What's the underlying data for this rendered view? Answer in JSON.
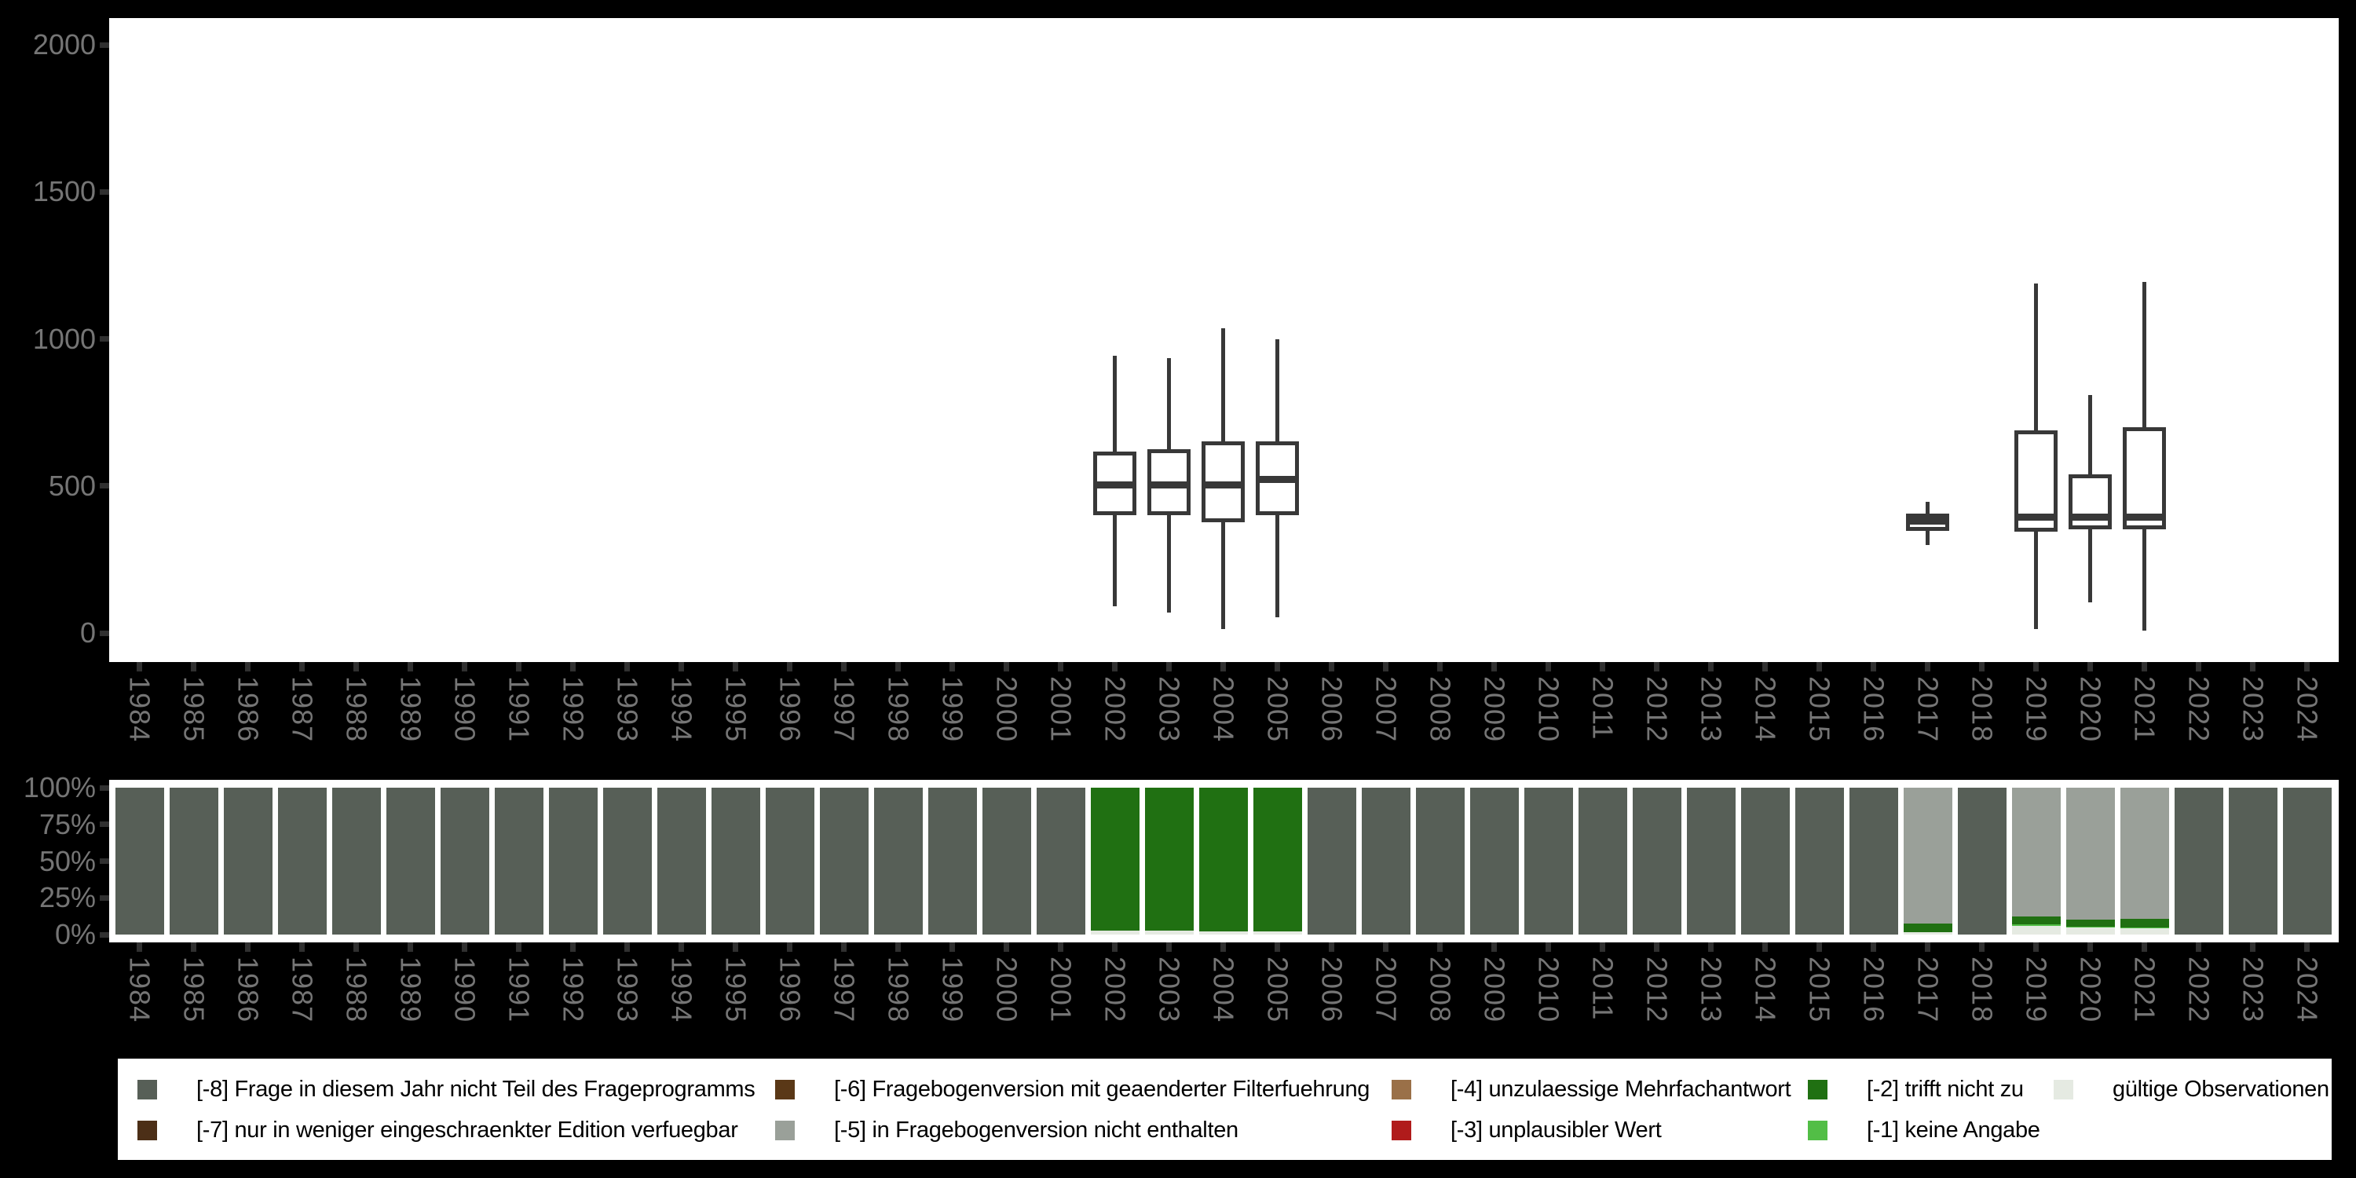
{
  "colors": {
    "background": "#000000",
    "panel": "#ffffff",
    "axis_text": "#757575",
    "tick_mark": "#303030",
    "box_stroke": "#383838",
    "code_-8": "#575F57",
    "code_-7": "#4C2F17",
    "code_-6": "#5A3817",
    "code_-5": "#9AA099",
    "code_-4": "#9A7048",
    "code_-3": "#B01B1B",
    "code_-2": "#207012",
    "code_-1": "#52BE46",
    "code_valid": "#E5EAE2"
  },
  "years": [
    "1984",
    "1985",
    "1986",
    "1987",
    "1988",
    "1989",
    "1990",
    "1991",
    "1992",
    "1993",
    "1994",
    "1995",
    "1996",
    "1997",
    "1998",
    "1999",
    "2000",
    "2001",
    "2002",
    "2003",
    "2004",
    "2005",
    "2006",
    "2007",
    "2008",
    "2009",
    "2010",
    "2011",
    "2012",
    "2013",
    "2014",
    "2015",
    "2016",
    "2017",
    "2018",
    "2019",
    "2020",
    "2021",
    "2022",
    "2023",
    "2024"
  ],
  "chart_data": [
    {
      "type": "boxplot",
      "title": "",
      "xlabel": "",
      "ylabel": "",
      "ylim": [
        0,
        2000
      ],
      "grid": false,
      "yticks": [
        {
          "label": "0",
          "value": 0
        },
        {
          "label": "500",
          "value": 500
        },
        {
          "label": "1000",
          "value": 1000
        },
        {
          "label": "1500",
          "value": 1500
        },
        {
          "label": "2000",
          "value": 2000
        }
      ],
      "boxes": [
        {
          "year": "2002",
          "low": 90,
          "q1": 400,
          "median": 503,
          "q3": 617,
          "high": 943
        },
        {
          "year": "2003",
          "low": 70,
          "q1": 401,
          "median": 504,
          "q3": 626,
          "high": 935
        },
        {
          "year": "2004",
          "low": 14,
          "q1": 376,
          "median": 504,
          "q3": 651,
          "high": 1037
        },
        {
          "year": "2005",
          "low": 53,
          "q1": 400,
          "median": 521,
          "q3": 651,
          "high": 998
        },
        {
          "year": "2017",
          "low": 298,
          "q1": 347,
          "median": 381,
          "q3": 406,
          "high": 445
        },
        {
          "year": "2019",
          "low": 13,
          "q1": 345,
          "median": 394,
          "q3": 690,
          "high": 1188
        },
        {
          "year": "2020",
          "low": 105,
          "q1": 352,
          "median": 394,
          "q3": 539,
          "high": 810
        },
        {
          "year": "2021",
          "low": 7,
          "q1": 352,
          "median": 394,
          "q3": 699,
          "high": 1194
        }
      ]
    },
    {
      "type": "stacked_bar_percent",
      "title": "",
      "xlabel": "",
      "ylabel": "",
      "grid": false,
      "yticks": [
        {
          "label": "0%",
          "value": 0
        },
        {
          "label": "25%",
          "value": 25
        },
        {
          "label": "50%",
          "value": 50
        },
        {
          "label": "75%",
          "value": 75
        },
        {
          "label": "100%",
          "value": 100
        }
      ],
      "default_segments": [
        {
          "code": "-8",
          "pct": 100
        }
      ],
      "bars": {
        "2002": [
          {
            "code": "valid",
            "pct": 2.6
          },
          {
            "code": "-2",
            "pct": 97.4
          }
        ],
        "2003": [
          {
            "code": "valid",
            "pct": 2.6
          },
          {
            "code": "-2",
            "pct": 97.4
          }
        ],
        "2004": [
          {
            "code": "valid",
            "pct": 2.3
          },
          {
            "code": "-2",
            "pct": 97.7
          }
        ],
        "2005": [
          {
            "code": "valid",
            "pct": 2.4
          },
          {
            "code": "-2",
            "pct": 97.6
          }
        ],
        "2017": [
          {
            "code": "valid",
            "pct": 1.4
          },
          {
            "code": "-2",
            "pct": 6.3
          },
          {
            "code": "-5",
            "pct": 92.3
          }
        ],
        "2019": [
          {
            "code": "valid",
            "pct": 6.1
          },
          {
            "code": "-1",
            "pct": 0.7
          },
          {
            "code": "-2",
            "pct": 5.7
          },
          {
            "code": "-5",
            "pct": 87.5
          }
        ],
        "2020": [
          {
            "code": "valid",
            "pct": 4.8
          },
          {
            "code": "-1",
            "pct": 0.7
          },
          {
            "code": "-2",
            "pct": 4.5
          },
          {
            "code": "-5",
            "pct": 90.0
          }
        ],
        "2021": [
          {
            "code": "valid",
            "pct": 4.3
          },
          {
            "code": "-1",
            "pct": 0.7
          },
          {
            "code": "-2",
            "pct": 5.7
          },
          {
            "code": "-5",
            "pct": 89.3
          }
        ]
      }
    }
  ],
  "legend": {
    "items": [
      {
        "code": "-8",
        "label": "[-8] Frage in diesem Jahr nicht Teil des Frageprogramms",
        "col": 0,
        "row": 0
      },
      {
        "code": "-7",
        "label": "[-7] nur in weniger eingeschraenkter Edition verfuegbar",
        "col": 0,
        "row": 1
      },
      {
        "code": "-6",
        "label": "[-6] Fragebogenversion mit geaenderter Filterfuehrung",
        "col": 1,
        "row": 0
      },
      {
        "code": "-5",
        "label": "[-5] in Fragebogenversion nicht enthalten",
        "col": 1,
        "row": 1
      },
      {
        "code": "-4",
        "label": "[-4] unzulaessige Mehrfachantwort",
        "col": 2,
        "row": 0
      },
      {
        "code": "-3",
        "label": "[-3] unplausibler Wert",
        "col": 2,
        "row": 1
      },
      {
        "code": "-2",
        "label": "[-2] trifft nicht zu",
        "col": 3,
        "row": 0
      },
      {
        "code": "-1",
        "label": "[-1] keine Angabe",
        "col": 3,
        "row": 1
      },
      {
        "code": "valid",
        "label": "gültige Observationen",
        "col": 4,
        "row": 0
      }
    ]
  }
}
